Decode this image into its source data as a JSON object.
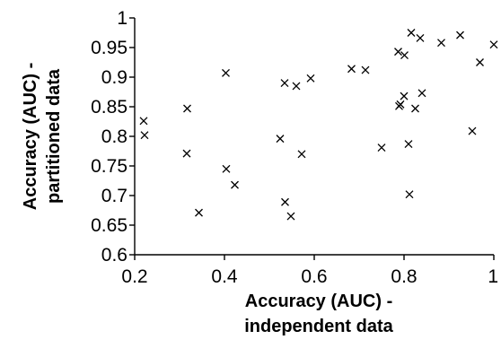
{
  "chart_data": {
    "type": "scatter",
    "xlabel_lines": [
      "Accuracy (AUC) -",
      "independent data"
    ],
    "ylabel_lines": [
      "Accuracy (AUC) -",
      "partitioned data"
    ],
    "xlim": [
      0.2,
      1.0
    ],
    "ylim": [
      0.6,
      1.0
    ],
    "xticks": [
      0.2,
      0.4,
      0.6,
      0.8,
      1.0
    ],
    "xtick_labels": [
      "0.2",
      "0.4",
      "0.6",
      "0.8",
      "1"
    ],
    "yticks": [
      0.6,
      0.65,
      0.7,
      0.75,
      0.8,
      0.85,
      0.9,
      0.95,
      1.0
    ],
    "ytick_labels": [
      "0.6",
      "0.65",
      "0.7",
      "0.75",
      "0.8",
      "0.85",
      "0.9",
      "0.95",
      "1"
    ],
    "grid": false,
    "marker": "x",
    "points": [
      {
        "x": 0.22,
        "y": 0.826
      },
      {
        "x": 0.222,
        "y": 0.802
      },
      {
        "x": 0.317,
        "y": 0.847
      },
      {
        "x": 0.316,
        "y": 0.771
      },
      {
        "x": 0.343,
        "y": 0.671
      },
      {
        "x": 0.403,
        "y": 0.907
      },
      {
        "x": 0.404,
        "y": 0.745
      },
      {
        "x": 0.423,
        "y": 0.718
      },
      {
        "x": 0.524,
        "y": 0.796
      },
      {
        "x": 0.534,
        "y": 0.89
      },
      {
        "x": 0.535,
        "y": 0.689
      },
      {
        "x": 0.548,
        "y": 0.665
      },
      {
        "x": 0.56,
        "y": 0.885
      },
      {
        "x": 0.572,
        "y": 0.77
      },
      {
        "x": 0.592,
        "y": 0.898
      },
      {
        "x": 0.683,
        "y": 0.914
      },
      {
        "x": 0.714,
        "y": 0.912
      },
      {
        "x": 0.75,
        "y": 0.781
      },
      {
        "x": 0.787,
        "y": 0.943
      },
      {
        "x": 0.789,
        "y": 0.851
      },
      {
        "x": 0.792,
        "y": 0.854
      },
      {
        "x": 0.8,
        "y": 0.868
      },
      {
        "x": 0.801,
        "y": 0.937
      },
      {
        "x": 0.81,
        "y": 0.787
      },
      {
        "x": 0.812,
        "y": 0.702
      },
      {
        "x": 0.816,
        "y": 0.975
      },
      {
        "x": 0.825,
        "y": 0.847
      },
      {
        "x": 0.836,
        "y": 0.966
      },
      {
        "x": 0.84,
        "y": 0.873
      },
      {
        "x": 0.883,
        "y": 0.958
      },
      {
        "x": 0.925,
        "y": 0.971
      },
      {
        "x": 0.952,
        "y": 0.809
      },
      {
        "x": 0.969,
        "y": 0.925
      },
      {
        "x": 1.0,
        "y": 0.955
      }
    ]
  }
}
